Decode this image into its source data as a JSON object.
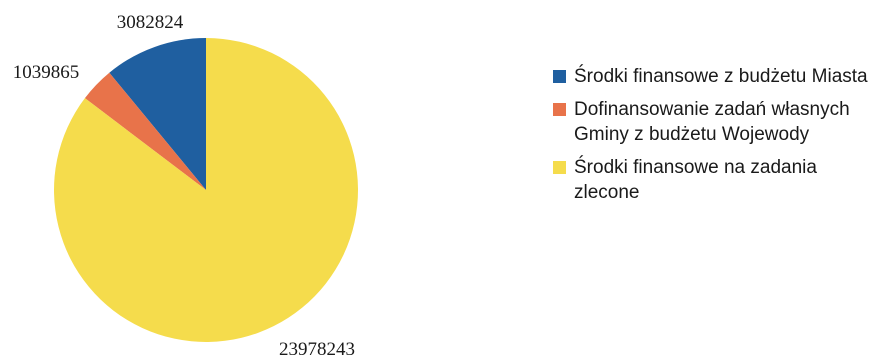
{
  "chart_data": {
    "type": "pie",
    "title": "",
    "legend_position": "right",
    "series": [
      {
        "label": "Środki finansowe z budżetu Miasta",
        "value": 3082824,
        "color": "#1f5fa0"
      },
      {
        "label": "Dofinansowanie zadań własnych Gminy z budżetu Wojewody",
        "value": 1039865,
        "color": "#e8734a"
      },
      {
        "label": "Środki finansowe na zadania zlecone",
        "value": 23978243,
        "color": "#f5dc4c"
      }
    ],
    "data_labels": [
      "3082824",
      "1039865",
      "23978243"
    ]
  }
}
